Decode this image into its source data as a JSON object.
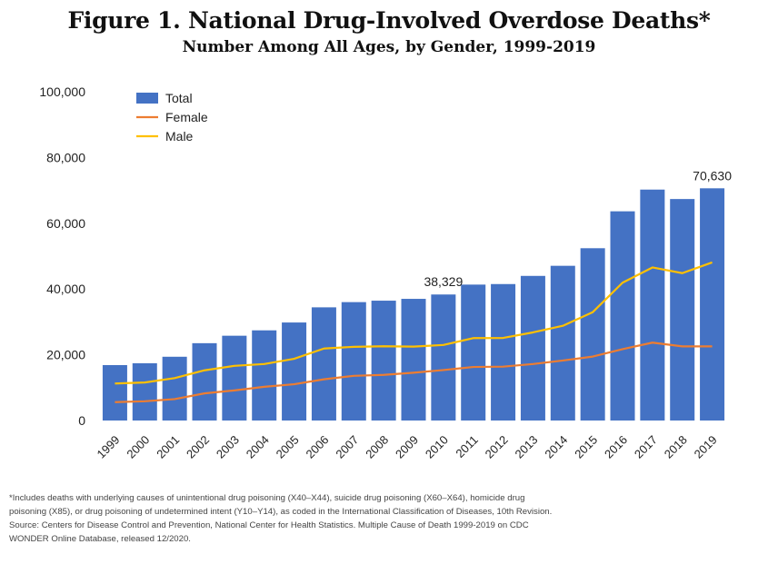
{
  "title": "Figure 1. National Drug-Involved Overdose Deaths*",
  "subtitle": "Number Among All Ages, by Gender, 1999-2019",
  "footnote": {
    "line1": "*Includes deaths with underlying causes of unintentional drug poisoning (X40–X44), suicide drug poisoning (X60–X64), homicide drug",
    "line2": "poisoning (X85), or drug poisoning of undetermined intent (Y10–Y14), as coded in the International Classification of Diseases, 10th Revision.",
    "line3": "Source: Centers for Disease Control and Prevention, National Center for Health Statistics. Multiple Cause of Death 1999-2019 on CDC",
    "line4": "WONDER Online Database, released 12/2020."
  },
  "colors": {
    "total": "#4472C4",
    "female": "#ED7D31",
    "male": "#FFC000"
  },
  "chart_data": {
    "type": "bar",
    "categories": [
      "1999",
      "2000",
      "2001",
      "2002",
      "2003",
      "2004",
      "2005",
      "2006",
      "2007",
      "2008",
      "2009",
      "2010",
      "2011",
      "2012",
      "2013",
      "2014",
      "2015",
      "2016",
      "2017",
      "2018",
      "2019"
    ],
    "ylim": [
      0,
      100000
    ],
    "yticks": [
      "0",
      "20,000",
      "40,000",
      "60,000",
      "80,000",
      "100,000"
    ],
    "ytick_values": [
      0,
      20000,
      40000,
      60000,
      80000,
      100000
    ],
    "grid": false,
    "legend_position": "top-left",
    "series": [
      {
        "name": "Total",
        "kind": "bar",
        "values": [
          16849,
          17415,
          19394,
          23518,
          25785,
          27424,
          29813,
          34425,
          36010,
          36450,
          37004,
          38329,
          41340,
          41502,
          43982,
          47055,
          52404,
          63632,
          70237,
          67367,
          70630
        ]
      },
      {
        "name": "Female",
        "kind": "line",
        "values": [
          5591,
          5850,
          6504,
          8254,
          9159,
          10250,
          11037,
          12533,
          13591,
          13876,
          14532,
          15348,
          16275,
          16390,
          17183,
          18243,
          19447,
          21713,
          23685,
          22546,
          22550
        ]
      },
      {
        "name": "Male",
        "kind": "line",
        "values": [
          11258,
          11565,
          12890,
          15264,
          16626,
          17174,
          18776,
          21892,
          22419,
          22574,
          22472,
          22981,
          25065,
          25112,
          26799,
          28812,
          32957,
          41919,
          46552,
          44821,
          48080
        ]
      }
    ],
    "annotations": [
      {
        "category": "2010",
        "text": "38,329"
      },
      {
        "category": "2019",
        "text": "70,630"
      }
    ]
  }
}
